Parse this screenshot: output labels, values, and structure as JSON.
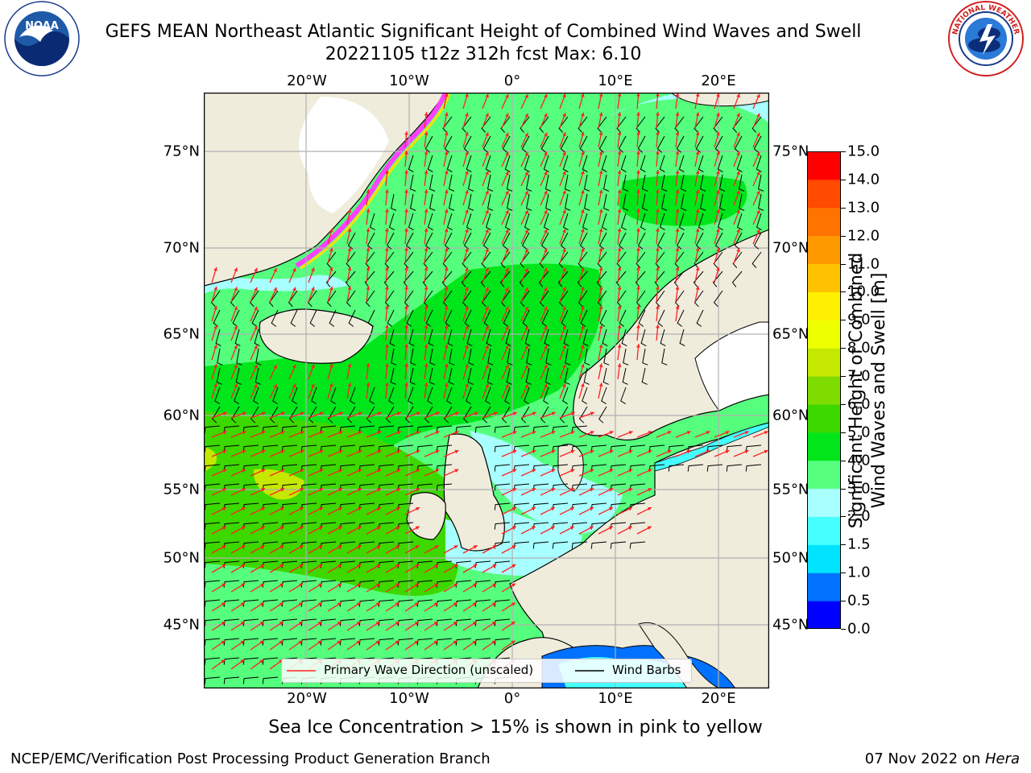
{
  "header": {
    "title_line1": "GEFS MEAN Northeast Atlantic Significant Height of Combined Wind Waves and Swell",
    "title_line2": "20221105 t12z 312h fcst    Max: 6.10"
  },
  "logos": {
    "left": {
      "name": "NOAA",
      "ring_text": "NATIONAL OCEANIC AND ATMOSPHERIC ADMINISTRATION · U.S. DEPARTMENT OF COMMERCE"
    },
    "right": {
      "name": "National Weather Service",
      "ring_text": "NATIONAL WEATHER SERVICE"
    }
  },
  "map": {
    "projection_extent": {
      "lon": [
        -30,
        25
      ],
      "lat": [
        41,
        78
      ]
    },
    "lon_ticks": [
      "20°W",
      "10°W",
      "0°",
      "10°E",
      "20°E"
    ],
    "lat_ticks": [
      "75°N",
      "70°N",
      "65°N",
      "60°N",
      "55°N",
      "50°N",
      "45°N"
    ],
    "colors": {
      "land": "#efecdc",
      "ice_free_white": "#ffffff",
      "grid": "#b0b0b0",
      "wave_direction": "#ff2020",
      "wind_barb": "#000000"
    }
  },
  "legend": {
    "wave_direction": "Primary Wave Direction (unscaled)",
    "wind_barbs": "Wind Barbs"
  },
  "colorbar": {
    "label": "Significant Height of Combined Wind Waves and Swell [m]",
    "label_line1": "Significant Height of Combined",
    "label_line2": "Wind Waves and Swell [m]",
    "ticks": [
      "15.0",
      "14.0",
      "13.0",
      "12.0",
      "11.0",
      "10.0",
      "9.0",
      "8.0",
      "7.0",
      "6.0",
      "5.0",
      "4.0",
      "3.0",
      "2.0",
      "1.5",
      "1.0",
      "0.5",
      "0.0"
    ],
    "colors": [
      "#0000ff",
      "#0072ff",
      "#00e3ff",
      "#46ffff",
      "#a8ffff",
      "#55ff7d",
      "#00e61a",
      "#3cd800",
      "#7edc00",
      "#c4e800",
      "#eeff00",
      "#ffef00",
      "#ffc200",
      "#ff9900",
      "#ff7300",
      "#ff4a00",
      "#ff0000"
    ]
  },
  "footer": {
    "caption": "Sea Ice Concentration > 15% is shown in pink to yellow",
    "left": "NCEP/EMC/Verification Post Processing Product Generation Branch",
    "right_prefix": "07 Nov 2022 on ",
    "right_host": "Hera"
  }
}
